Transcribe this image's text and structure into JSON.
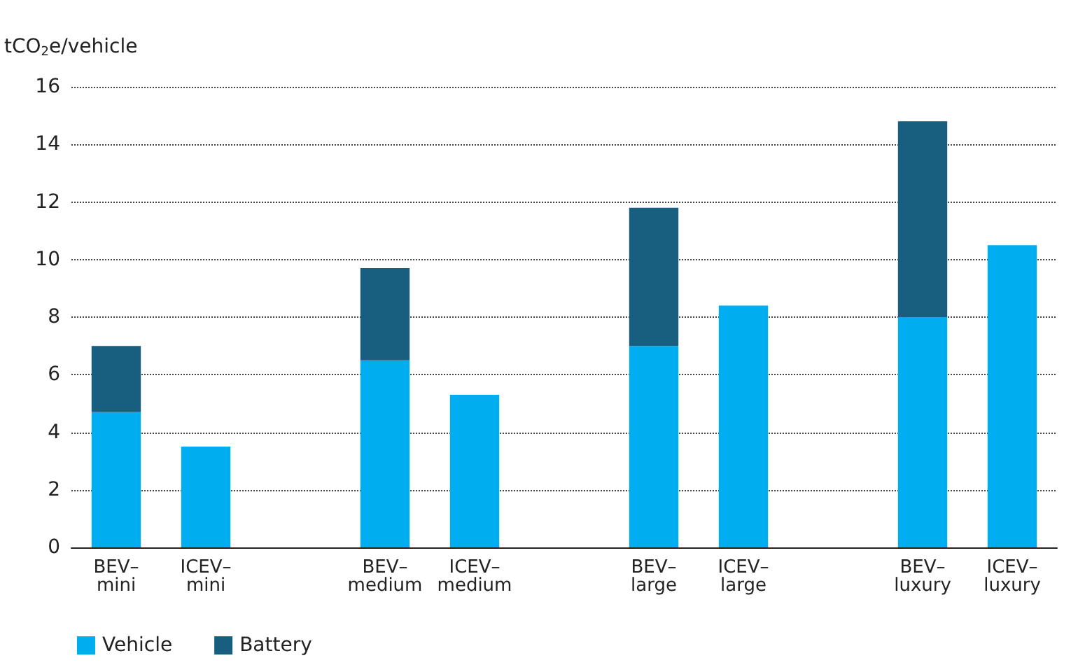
{
  "chart_data": {
    "type": "bar",
    "stacked": true,
    "ylabel": "tCO$_{2}$e/vehicle",
    "categories": [
      "BEV–\nmini",
      "ICEV–\nmini",
      null,
      "BEV–\nmedium",
      "ICEV–\nmedium",
      null,
      "BEV–\nlarge",
      "ICEV–\nlarge",
      null,
      "BEV–\nluxury",
      "ICEV–\nluxury"
    ],
    "series": [
      {
        "name": "Vehicle",
        "color": "#00aeef",
        "values": [
          4.7,
          3.5,
          null,
          6.5,
          5.3,
          null,
          7.0,
          8.4,
          null,
          8.0,
          10.5
        ]
      },
      {
        "name": "Battery",
        "color": "#175e7f",
        "values": [
          2.3,
          null,
          null,
          3.2,
          null,
          null,
          4.8,
          null,
          null,
          6.8,
          null
        ]
      }
    ],
    "ylim": [
      0,
      16
    ],
    "yticks": [
      0,
      2,
      4,
      6,
      8,
      10,
      12,
      14,
      16
    ],
    "grid": "y",
    "legend": "bottom left"
  }
}
